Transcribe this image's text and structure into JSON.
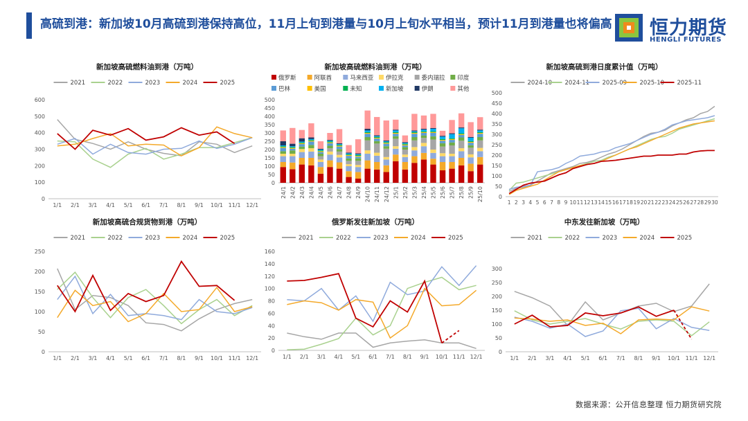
{
  "page": {
    "title": "高硫到港：新加坡10月高硫到港保持高位，11月上旬到港量与10月上旬水平相当，预计11月到港量也将偏高",
    "logo_cn": "恒力期货",
    "logo_en": "HENGLI FUTURES",
    "source": "数据来源：公开信息整理  恒力期货研究院"
  },
  "colors": {
    "brand": "#1f4e9c",
    "logo_orange": "#f08a1c",
    "logo_green": "#8cc63f",
    "logo_blue": "#1f4e9c"
  },
  "chart_data": [
    {
      "id": "c1",
      "type": "line",
      "title": "新加坡高硫燃料油到港（万吨）",
      "categories": [
        "1/1",
        "2/1",
        "3/1",
        "4/1",
        "5/1",
        "6/1",
        "7/1",
        "8/1",
        "9/1",
        "10/1",
        "11/1",
        "12/1"
      ],
      "ylim": [
        0,
        600
      ],
      "yticks": [
        0,
        100,
        200,
        300,
        400,
        500,
        600
      ],
      "series": [
        {
          "name": "2021",
          "color": "#a6a6a6",
          "values": [
            480,
            360,
            335,
            300,
            345,
            300,
            275,
            260,
            345,
            330,
            280,
            320
          ]
        },
        {
          "name": "2022",
          "color": "#a9d18e",
          "values": [
            350,
            345,
            240,
            190,
            270,
            305,
            240,
            270,
            310,
            310,
            340,
            370
          ]
        },
        {
          "name": "2023",
          "color": "#8faadc",
          "values": [
            330,
            365,
            270,
            330,
            280,
            270,
            300,
            305,
            350,
            305,
            330,
            370
          ]
        },
        {
          "name": "2024",
          "color": "#f4a92a",
          "values": [
            320,
            330,
            365,
            395,
            320,
            330,
            325,
            260,
            310,
            435,
            395,
            370
          ]
        },
        {
          "name": "2025",
          "color": "#c00000",
          "values": [
            395,
            300,
            415,
            385,
            425,
            355,
            375,
            430,
            385,
            405,
            335,
            null
          ],
          "dashed_from": 10
        }
      ]
    },
    {
      "id": "c2",
      "type": "bar",
      "stacked": true,
      "title": "新加坡高硫燃料油到港（万吨）",
      "categories": [
        "24/1",
        "24/2",
        "24/3",
        "24/4",
        "24/5",
        "24/6",
        "24/7",
        "24/8",
        "24/9",
        "24/10",
        "24/11",
        "24/12",
        "25/1",
        "25/2",
        "25/3",
        "25/4",
        "25/5",
        "25/6",
        "25/7",
        "25/8",
        "25/9",
        "25/10"
      ],
      "ylim": [
        0,
        500
      ],
      "yticks": [
        0,
        50,
        100,
        150,
        200,
        250,
        300,
        350,
        400,
        450,
        500
      ],
      "series": [
        {
          "name": "俄罗斯",
          "color": "#c00000",
          "values": [
            95,
            82,
            110,
            105,
            55,
            95,
            85,
            35,
            25,
            85,
            80,
            65,
            130,
            80,
            120,
            140,
            110,
            75,
            85,
            105,
            70,
            110
          ]
        },
        {
          "name": "阿联酋",
          "color": "#f4a92a",
          "values": [
            30,
            40,
            40,
            45,
            40,
            40,
            38,
            35,
            40,
            50,
            45,
            40,
            40,
            45,
            40,
            40,
            35,
            50,
            40,
            45,
            45,
            45
          ]
        },
        {
          "name": "马来西亚",
          "color": "#8faadc",
          "values": [
            35,
            38,
            35,
            38,
            30,
            35,
            30,
            30,
            30,
            40,
            38,
            35,
            35,
            30,
            35,
            40,
            35,
            35,
            35,
            40,
            38,
            35
          ]
        },
        {
          "name": "伊拉克",
          "color": "#ffd966",
          "values": [
            15,
            15,
            18,
            20,
            15,
            18,
            15,
            12,
            12,
            20,
            18,
            15,
            15,
            15,
            20,
            20,
            20,
            18,
            15,
            18,
            18,
            20
          ]
        },
        {
          "name": "委内瑞拉",
          "color": "#a6a6a6",
          "values": [
            0,
            0,
            0,
            0,
            20,
            20,
            20,
            20,
            25,
            60,
            55,
            50,
            45,
            30,
            40,
            30,
            60,
            40,
            50,
            45,
            40,
            45
          ]
        },
        {
          "name": "印度",
          "color": "#70ad47",
          "values": [
            15,
            20,
            15,
            20,
            15,
            15,
            15,
            15,
            15,
            20,
            15,
            15,
            15,
            15,
            20,
            15,
            20,
            20,
            18,
            20,
            15,
            20
          ]
        },
        {
          "name": "巴林",
          "color": "#5b9bd5",
          "values": [
            20,
            10,
            15,
            20,
            10,
            15,
            15,
            15,
            10,
            20,
            15,
            15,
            15,
            10,
            20,
            15,
            20,
            15,
            15,
            15,
            15,
            20
          ]
        },
        {
          "name": "美国",
          "color": "#ffc000",
          "values": [
            5,
            5,
            5,
            5,
            5,
            5,
            5,
            5,
            5,
            5,
            5,
            5,
            5,
            5,
            5,
            5,
            5,
            5,
            5,
            5,
            5,
            5
          ]
        },
        {
          "name": "未知",
          "color": "#00b050",
          "values": [
            5,
            5,
            5,
            5,
            5,
            5,
            5,
            5,
            5,
            5,
            5,
            5,
            5,
            5,
            5,
            5,
            5,
            5,
            5,
            5,
            5,
            5
          ]
        },
        {
          "name": "新加坡",
          "color": "#00b0f0",
          "values": [
            5,
            5,
            5,
            5,
            5,
            5,
            5,
            5,
            5,
            10,
            5,
            5,
            10,
            5,
            5,
            10,
            15,
            15,
            25,
            30,
            20,
            10
          ]
        },
        {
          "name": "伊朗",
          "color": "#203864",
          "values": [
            25,
            15,
            20,
            10,
            5,
            5,
            5,
            5,
            5,
            10,
            5,
            5,
            5,
            5,
            5,
            5,
            5,
            5,
            5,
            5,
            5,
            5
          ]
        },
        {
          "name": "其他",
          "color": "#ff9999",
          "values": [
            65,
            95,
            50,
            85,
            45,
            42,
            85,
            45,
            85,
            110,
            110,
            120,
            60,
            40,
            100,
            80,
            85,
            30,
            80,
            85,
            89,
            75
          ]
        }
      ]
    },
    {
      "id": "c3",
      "type": "line",
      "title": "新加坡高硫到港日度累计值（万吨）",
      "categories": [
        "1",
        "2",
        "3",
        "4",
        "5",
        "6",
        "7",
        "8",
        "9",
        "10",
        "11",
        "12",
        "13",
        "14",
        "15",
        "16",
        "17",
        "18",
        "19",
        "20",
        "21",
        "22",
        "23",
        "24",
        "25",
        "26",
        "27",
        "28",
        "29",
        "30"
      ],
      "ylim": [
        0,
        500
      ],
      "yticks": [
        0,
        50,
        100,
        150,
        200,
        250,
        300,
        350,
        400,
        450,
        500
      ],
      "series": [
        {
          "name": "2024-10",
          "color": "#a6a6a6",
          "values": [
            25,
            40,
            45,
            55,
            75,
            95,
            115,
            125,
            135,
            145,
            160,
            165,
            175,
            190,
            205,
            215,
            230,
            250,
            270,
            290,
            305,
            310,
            320,
            340,
            355,
            370,
            380,
            400,
            410,
            435
          ]
        },
        {
          "name": "2024-11",
          "color": "#a9d18e",
          "values": [
            30,
            65,
            70,
            80,
            90,
            100,
            110,
            120,
            130,
            140,
            150,
            160,
            170,
            175,
            190,
            200,
            215,
            230,
            245,
            260,
            275,
            285,
            290,
            305,
            325,
            335,
            345,
            355,
            365,
            375
          ]
        },
        {
          "name": "2025-09",
          "color": "#8faadc",
          "values": [
            35,
            45,
            50,
            55,
            120,
            125,
            130,
            140,
            160,
            175,
            195,
            200,
            205,
            215,
            220,
            235,
            245,
            255,
            270,
            285,
            300,
            310,
            325,
            345,
            355,
            365,
            370,
            375,
            380,
            390
          ]
        },
        {
          "name": "2025-10",
          "color": "#f4a92a",
          "values": [
            10,
            30,
            40,
            50,
            60,
            80,
            100,
            120,
            130,
            140,
            150,
            155,
            160,
            170,
            185,
            200,
            215,
            230,
            240,
            255,
            270,
            285,
            300,
            315,
            330,
            340,
            350,
            355,
            360,
            365
          ]
        },
        {
          "name": "2025-11",
          "color": "#c00000",
          "values": [
            15,
            35,
            55,
            65,
            70,
            75,
            90,
            105,
            115,
            135,
            145,
            155,
            160,
            170,
            172,
            175,
            180,
            185,
            190,
            195,
            195,
            200,
            200,
            200,
            205,
            205,
            215,
            220,
            222,
            222
          ]
        }
      ]
    },
    {
      "id": "c4",
      "type": "line",
      "title": "新加坡高硫合规货物到港（万吨）",
      "categories": [
        "1/1",
        "2/1",
        "3/1",
        "4/1",
        "5/1",
        "6/1",
        "7/1",
        "8/1",
        "9/1",
        "10/1",
        "11/1",
        "12/1"
      ],
      "ylim": [
        0,
        250
      ],
      "yticks": [
        0,
        50,
        100,
        150,
        200,
        250
      ],
      "series": [
        {
          "name": "2021",
          "color": "#a6a6a6",
          "values": [
            207,
            105,
            140,
            135,
            115,
            72,
            68,
            52,
            82,
            105,
            120,
            130
          ]
        },
        {
          "name": "2022",
          "color": "#a9d18e",
          "values": [
            155,
            198,
            135,
            85,
            135,
            155,
            115,
            70,
            105,
            130,
            90,
            115
          ]
        },
        {
          "name": "2023",
          "color": "#8faadc",
          "values": [
            130,
            188,
            95,
            143,
            90,
            95,
            90,
            80,
            130,
            100,
            95,
            110
          ]
        },
        {
          "name": "2024",
          "color": "#f4a92a",
          "values": [
            85,
            153,
            115,
            125,
            75,
            95,
            145,
            100,
            105,
            160,
            100,
            112
          ]
        },
        {
          "name": "2025",
          "color": "#c00000",
          "values": [
            165,
            100,
            190,
            103,
            145,
            125,
            140,
            225,
            163,
            165,
            128,
            null
          ],
          "dashed_from": 10
        }
      ]
    },
    {
      "id": "c5",
      "type": "line",
      "title": "俄罗斯发往新加坡（万吨）",
      "categories": [
        "1/1",
        "2/1",
        "3/1",
        "4/1",
        "5/1",
        "6/1",
        "7/1",
        "8/1",
        "9/1",
        "10/1",
        "11/1",
        "12/1"
      ],
      "ylim": [
        0,
        160
      ],
      "yticks": [
        0,
        20,
        40,
        60,
        80,
        100,
        120,
        140,
        160
      ],
      "series": [
        {
          "name": "2021",
          "color": "#a6a6a6",
          "values": [
            28,
            22,
            18,
            28,
            28,
            5,
            12,
            15,
            17,
            12,
            12,
            3
          ]
        },
        {
          "name": "2022",
          "color": "#a9d18e",
          "values": [
            1,
            2,
            10,
            19,
            52,
            25,
            40,
            100,
            110,
            118,
            98,
            105
          ]
        },
        {
          "name": "2023",
          "color": "#8faadc",
          "values": [
            82,
            80,
            100,
            65,
            88,
            47,
            110,
            90,
            96,
            135,
            105,
            137
          ]
        },
        {
          "name": "2024",
          "color": "#f4a92a",
          "values": [
            74,
            80,
            77,
            65,
            82,
            78,
            20,
            40,
            100,
            72,
            74,
            97
          ]
        },
        {
          "name": "2025",
          "color": "#c00000",
          "values": [
            112,
            113,
            118,
            124,
            52,
            38,
            80,
            62,
            112,
            12,
            32,
            null
          ],
          "dashed_from": 9
        }
      ]
    },
    {
      "id": "c6",
      "type": "line",
      "title": "中东发往新加坡（万吨）",
      "categories": [
        "1/1",
        "2/1",
        "3/1",
        "4/1",
        "5/1",
        "6/1",
        "7/1",
        "8/1",
        "9/1",
        "10/1",
        "11/1",
        "12/1"
      ],
      "ylim": [
        0,
        300
      ],
      "yticks": [
        0,
        50,
        100,
        150,
        200,
        250,
        300
      ],
      "series": [
        {
          "name": "2021",
          "color": "#a6a6a6",
          "values": [
            218,
            195,
            165,
            95,
            180,
            115,
            140,
            165,
            175,
            145,
            165,
            245
          ]
        },
        {
          "name": "2022",
          "color": "#a9d18e",
          "values": [
            148,
            115,
            100,
            110,
            120,
            100,
            82,
            110,
            115,
            110,
            58,
            108
          ]
        },
        {
          "name": "2023",
          "color": "#8faadc",
          "values": [
            125,
            110,
            85,
            100,
            55,
            75,
            148,
            157,
            83,
            120,
            88,
            77
          ]
        },
        {
          "name": "2024",
          "color": "#f4a92a",
          "values": [
            122,
            118,
            110,
            115,
            95,
            103,
            65,
            115,
            118,
            115,
            162,
            147
          ]
        },
        {
          "name": "2025",
          "color": "#c00000",
          "values": [
            100,
            132,
            90,
            95,
            140,
            130,
            140,
            162,
            128,
            150,
            45,
            null
          ],
          "dashed_from": 9
        }
      ]
    }
  ]
}
